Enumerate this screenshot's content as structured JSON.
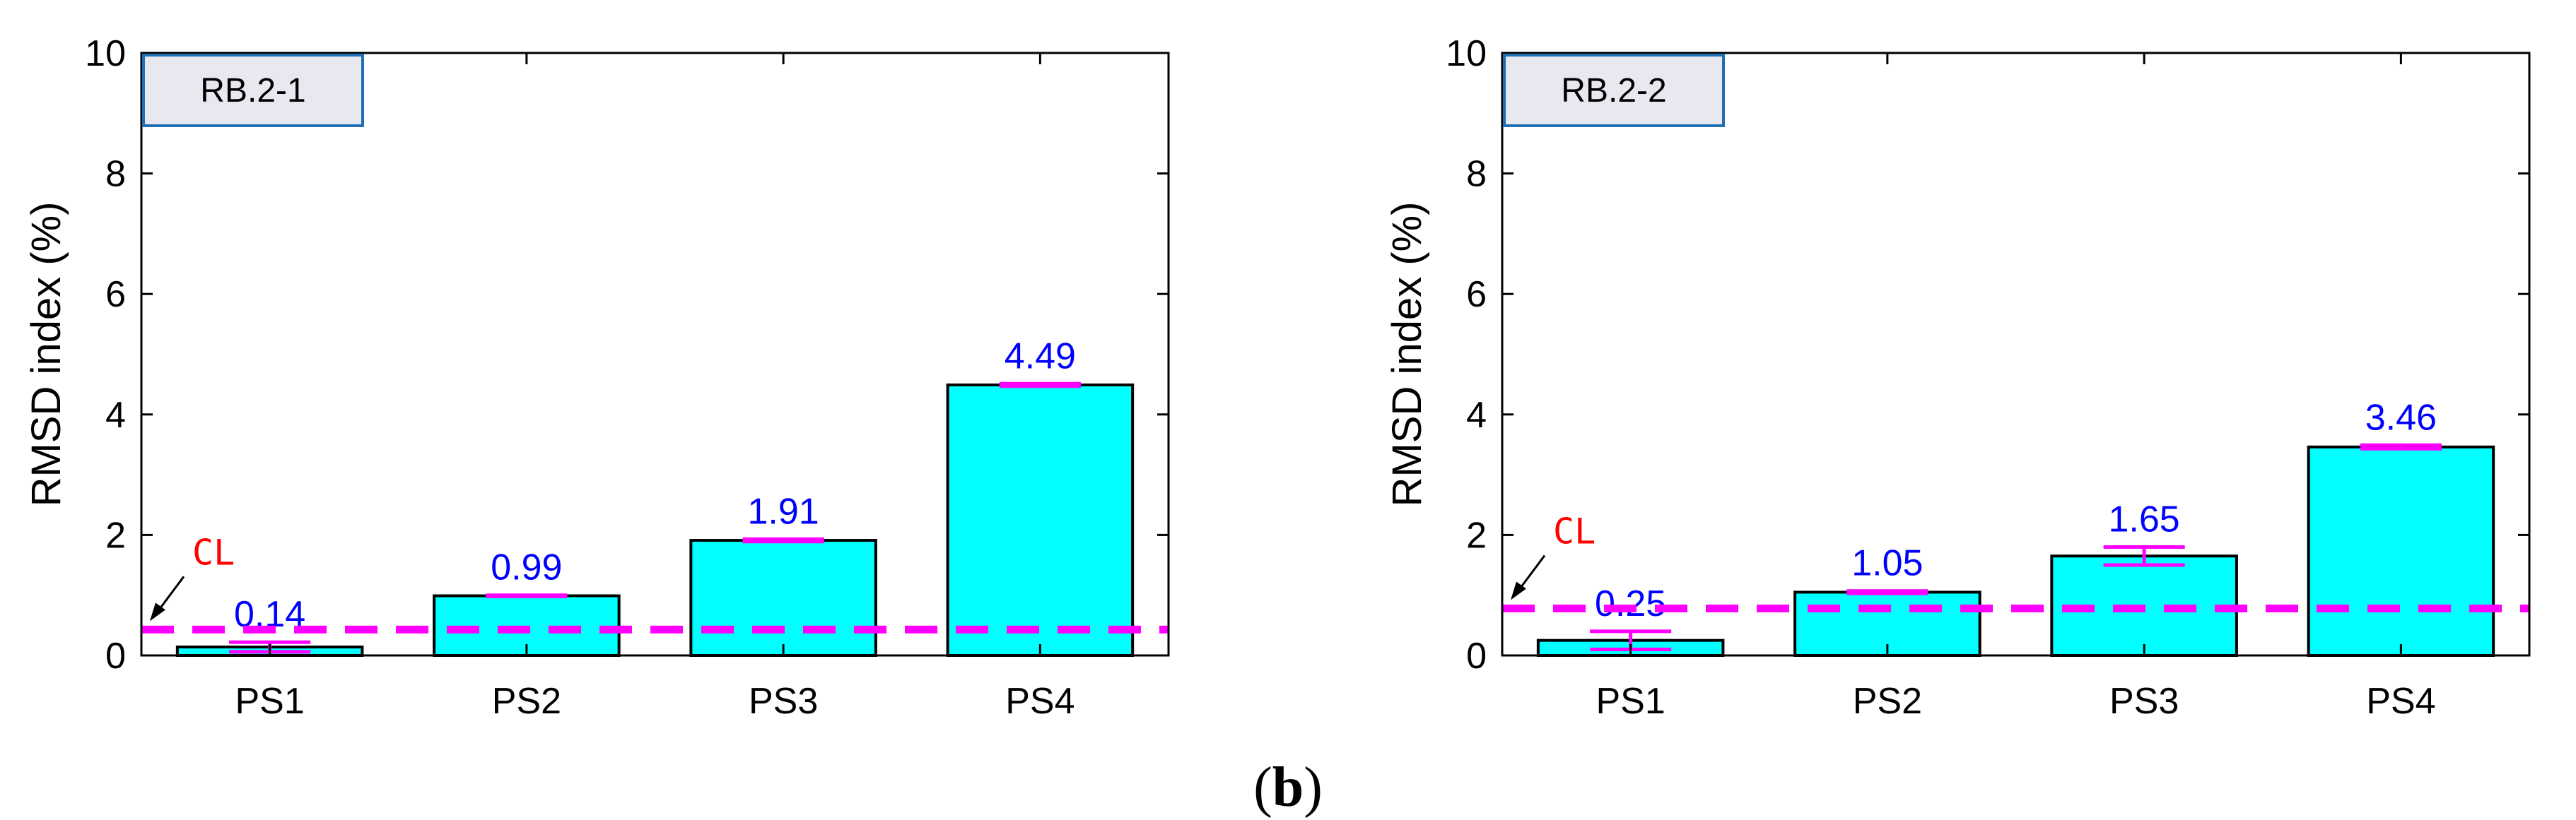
{
  "figure": {
    "caption_prefix": "(",
    "caption_letter": "b",
    "caption_suffix": ")"
  },
  "colors": {
    "bar_fill": "#00ffff",
    "bar_stroke": "#000000",
    "error_bar": "#ff00ff",
    "threshold_line": "#ff00ff",
    "value_label": "#0000ff",
    "cl_label": "#ff0000",
    "title_box_fill": "#e8e8f0",
    "title_box_stroke": "#1f6fb4"
  },
  "chart_data": [
    {
      "type": "bar",
      "title": "RB.2-1",
      "xlabel": "",
      "ylabel": "RMSD index (%)",
      "ylim": [
        0,
        10
      ],
      "yticks": [
        0,
        2,
        4,
        6,
        8,
        10
      ],
      "categories": [
        "PS1",
        "PS2",
        "PS3",
        "PS4"
      ],
      "values": [
        0.14,
        0.99,
        1.91,
        4.49
      ],
      "value_labels": [
        "0.14",
        "0.99",
        "1.91",
        "4.49"
      ],
      "errors": [
        0.08,
        0.01,
        0.02,
        0.02
      ],
      "threshold": {
        "label": "CL",
        "value": 0.43
      },
      "grid": false
    },
    {
      "type": "bar",
      "title": "RB.2-2",
      "xlabel": "",
      "ylabel": "RMSD index (%)",
      "ylim": [
        0,
        10
      ],
      "yticks": [
        0,
        2,
        4,
        6,
        8,
        10
      ],
      "categories": [
        "PS1",
        "PS2",
        "PS3",
        "PS4"
      ],
      "values": [
        0.25,
        1.05,
        1.65,
        3.46
      ],
      "value_labels": [
        "0.25",
        "1.05",
        "1.65",
        "3.46"
      ],
      "errors": [
        0.15,
        0.02,
        0.15,
        0.03
      ],
      "threshold": {
        "label": "CL",
        "value": 0.78
      },
      "grid": false
    }
  ]
}
